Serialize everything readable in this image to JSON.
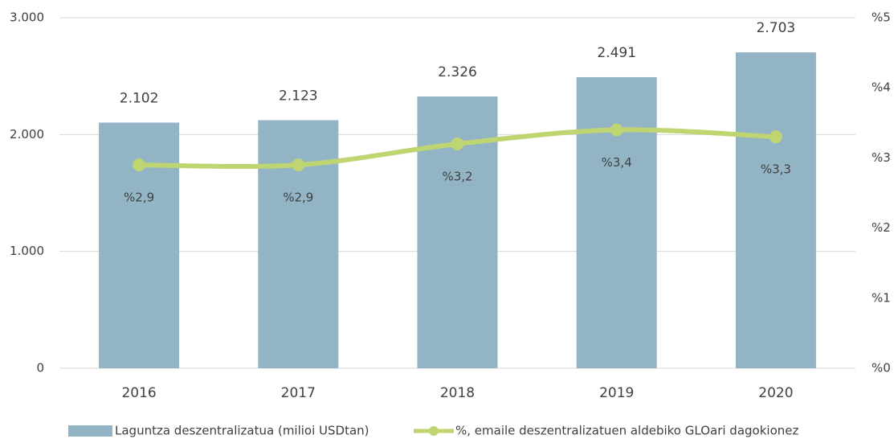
{
  "chart_data": {
    "type": "bar",
    "categories": [
      "2016",
      "2017",
      "2018",
      "2019",
      "2020"
    ],
    "series": [
      {
        "name": "Laguntza deszentralizatua (milioi USDtan)",
        "type": "bar",
        "color": "#92b4c5",
        "values": [
          2102,
          2123,
          2326,
          2491,
          2703
        ],
        "value_labels": [
          "2.102",
          "2.123",
          "2.326",
          "2.491",
          "2.703"
        ]
      },
      {
        "name": "%, emaile deszentralizatuen aldebiko GLOari dagokionez",
        "type": "line",
        "axis": "y2",
        "color": "#bfd572",
        "values": [
          2.9,
          2.9,
          3.2,
          3.4,
          3.3
        ],
        "value_labels": [
          "%2,9",
          "%2,9",
          "%3,2",
          "%3,4",
          "%3,3"
        ]
      }
    ],
    "ylim": [
      0,
      3000
    ],
    "yticks": [
      0,
      {
        "value": 1000,
        "label": "1.000"
      },
      {
        "value": 2000,
        "label": "2.000"
      },
      {
        "value": 3000,
        "label": "3.000"
      }
    ],
    "y2lim": [
      0,
      5
    ],
    "y2ticks": [
      {
        "value": 0,
        "label": "%0"
      },
      {
        "value": 1,
        "label": "%1"
      },
      {
        "value": 2,
        "label": "%2"
      },
      {
        "value": 3,
        "label": "%3"
      },
      {
        "value": 4,
        "label": "%4"
      },
      {
        "value": 5,
        "label": "%5"
      }
    ],
    "grid": true,
    "legend": "bottom"
  }
}
